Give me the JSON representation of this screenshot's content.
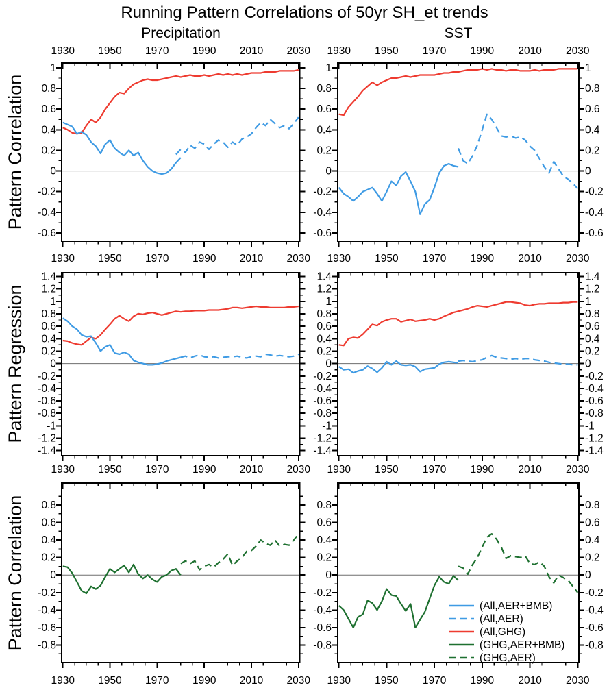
{
  "title": "Running Pattern Correlations of 50yr SH_et trends",
  "columns": [
    "Precipitation",
    "SST"
  ],
  "row_labels": [
    "Pattern Correlation",
    "Pattern Regression",
    "Pattern Correlation"
  ],
  "colors": {
    "blue": "#3F9BE4",
    "red": "#EE3B30",
    "green": "#1E7030",
    "zero_line": "#6e6e6e",
    "axis": "#000000"
  },
  "legend": [
    {
      "key": "all-aer-bmb",
      "label": "(All,AER+BMB)",
      "color": "blue",
      "dash": false
    },
    {
      "key": "all-aer",
      "label": "(All,AER)",
      "color": "blue",
      "dash": true
    },
    {
      "key": "all-ghg",
      "label": "(All,GHG)",
      "color": "red",
      "dash": false
    },
    {
      "key": "ghg-aer-bmb",
      "label": "(GHG,AER+BMB)",
      "color": "green",
      "dash": false
    },
    {
      "key": "ghg-aer",
      "label": "(GHG,AER)",
      "color": "green",
      "dash": true
    }
  ],
  "x_axis": {
    "start": 1930,
    "end": 2030,
    "majors": [
      1930,
      1950,
      1970,
      1990,
      2010,
      2030
    ],
    "minor_step": 5
  },
  "chart_data": [
    {
      "id": "precipitation-pattern-correlation",
      "type": "line",
      "row": 0,
      "col": 0,
      "xlabel": "",
      "ylabel": "Pattern Correlation",
      "ylim": [
        -0.68,
        1.046
      ],
      "ytick_min": -0.6,
      "ytick_max": 1.0,
      "ytick_step": 0.2,
      "series": [
        {
          "key": "all-ghg",
          "name": "(All,GHG)",
          "color": "red",
          "dash": false,
          "x0": 1930,
          "dx": 2,
          "values": [
            0.42,
            0.4,
            0.37,
            0.36,
            0.37,
            0.44,
            0.5,
            0.47,
            0.52,
            0.6,
            0.66,
            0.72,
            0.76,
            0.75,
            0.8,
            0.84,
            0.86,
            0.88,
            0.89,
            0.88,
            0.88,
            0.89,
            0.9,
            0.91,
            0.92,
            0.91,
            0.92,
            0.93,
            0.92,
            0.92,
            0.93,
            0.92,
            0.93,
            0.94,
            0.93,
            0.94,
            0.93,
            0.94,
            0.93,
            0.94,
            0.95,
            0.95,
            0.95,
            0.96,
            0.96,
            0.96,
            0.97,
            0.97,
            0.97,
            0.97,
            0.98
          ]
        },
        {
          "key": "all-aer-bmb",
          "name": "(All,AER+BMB)",
          "color": "blue",
          "dash": false,
          "x0": 1930,
          "dx": 2,
          "values": [
            0.47,
            0.45,
            0.43,
            0.36,
            0.38,
            0.35,
            0.28,
            0.24,
            0.17,
            0.26,
            0.3,
            0.22,
            0.18,
            0.15,
            0.2,
            0.15,
            0.18,
            0.1,
            0.04,
            0.0,
            -0.02,
            -0.03,
            -0.02,
            0.02,
            0.08,
            0.13
          ]
        },
        {
          "key": "all-aer",
          "name": "(All,AER)",
          "color": "blue",
          "dash": true,
          "x0": 1978,
          "dx": 2,
          "values": [
            0.16,
            0.21,
            0.18,
            0.25,
            0.22,
            0.28,
            0.26,
            0.21,
            0.26,
            0.3,
            0.28,
            0.23,
            0.28,
            0.25,
            0.31,
            0.33,
            0.36,
            0.42,
            0.47,
            0.44,
            0.5,
            0.46,
            0.42,
            0.44,
            0.41,
            0.46,
            0.52
          ]
        }
      ]
    },
    {
      "id": "sst-pattern-correlation",
      "type": "line",
      "row": 0,
      "col": 1,
      "xlabel": "",
      "ylabel": "Pattern Correlation",
      "ylim": [
        -0.68,
        1.046
      ],
      "ytick_min": -0.6,
      "ytick_max": 1.0,
      "ytick_step": 0.2,
      "series": [
        {
          "key": "all-ghg",
          "name": "(All,GHG)",
          "color": "red",
          "dash": false,
          "x0": 1930,
          "dx": 2,
          "values": [
            0.55,
            0.54,
            0.62,
            0.67,
            0.72,
            0.78,
            0.82,
            0.86,
            0.83,
            0.86,
            0.88,
            0.9,
            0.9,
            0.91,
            0.92,
            0.91,
            0.92,
            0.93,
            0.93,
            0.93,
            0.93,
            0.94,
            0.95,
            0.95,
            0.96,
            0.96,
            0.97,
            0.98,
            0.98,
            0.98,
            0.99,
            0.98,
            0.99,
            0.98,
            0.98,
            0.97,
            0.98,
            0.98,
            0.97,
            0.97,
            0.97,
            0.98,
            0.97,
            0.98,
            0.98,
            0.98,
            0.99,
            0.99,
            0.99,
            0.99,
            0.99
          ]
        },
        {
          "key": "all-aer-bmb",
          "name": "(All,AER+BMB)",
          "color": "blue",
          "dash": false,
          "x0": 1930,
          "dx": 2,
          "values": [
            -0.16,
            -0.22,
            -0.25,
            -0.29,
            -0.25,
            -0.2,
            -0.18,
            -0.16,
            -0.22,
            -0.29,
            -0.2,
            -0.1,
            -0.14,
            -0.05,
            -0.01,
            -0.1,
            -0.2,
            -0.42,
            -0.32,
            -0.28,
            -0.16,
            -0.02,
            0.05,
            0.07,
            0.05,
            0.04
          ]
        },
        {
          "key": "all-aer",
          "name": "(All,AER)",
          "color": "blue",
          "dash": true,
          "x0": 1980,
          "dx": 2,
          "values": [
            0.22,
            0.1,
            0.07,
            0.15,
            0.25,
            0.4,
            0.55,
            0.5,
            0.42,
            0.34,
            0.33,
            0.34,
            0.32,
            0.33,
            0.3,
            0.24,
            0.2,
            0.12,
            0.04,
            -0.02,
            0.09,
            0.02,
            -0.05,
            -0.08,
            -0.12,
            -0.17
          ]
        }
      ]
    },
    {
      "id": "precipitation-pattern-regression",
      "type": "line",
      "row": 1,
      "col": 0,
      "xlabel": "",
      "ylabel": "Pattern Regression",
      "ylim": [
        -1.48,
        1.46
      ],
      "ytick_min": -1.4,
      "ytick_max": 1.4,
      "ytick_step": 0.2,
      "series": [
        {
          "key": "all-ghg",
          "name": "(All,GHG)",
          "color": "red",
          "dash": false,
          "x0": 1930,
          "dx": 2,
          "values": [
            0.37,
            0.36,
            0.33,
            0.31,
            0.3,
            0.36,
            0.42,
            0.4,
            0.46,
            0.55,
            0.63,
            0.72,
            0.77,
            0.72,
            0.68,
            0.76,
            0.8,
            0.79,
            0.81,
            0.82,
            0.8,
            0.78,
            0.8,
            0.82,
            0.84,
            0.83,
            0.84,
            0.84,
            0.85,
            0.85,
            0.85,
            0.86,
            0.86,
            0.86,
            0.87,
            0.88,
            0.9,
            0.9,
            0.89,
            0.9,
            0.91,
            0.92,
            0.91,
            0.91,
            0.9,
            0.9,
            0.9,
            0.9,
            0.91,
            0.91,
            0.92
          ]
        },
        {
          "key": "all-aer-bmb",
          "name": "(All,AER+BMB)",
          "color": "blue",
          "dash": false,
          "x0": 1930,
          "dx": 2,
          "values": [
            0.73,
            0.68,
            0.6,
            0.55,
            0.46,
            0.43,
            0.44,
            0.33,
            0.2,
            0.27,
            0.3,
            0.17,
            0.15,
            0.18,
            0.15,
            0.05,
            0.02,
            0.0,
            -0.02,
            -0.02,
            -0.01,
            0.01,
            0.04,
            0.06,
            0.08,
            0.1
          ]
        },
        {
          "key": "all-aer",
          "name": "(All,AER)",
          "color": "blue",
          "dash": true,
          "x0": 1980,
          "dx": 2,
          "values": [
            0.1,
            0.12,
            0.09,
            0.12,
            0.14,
            0.11,
            0.1,
            0.11,
            0.09,
            0.1,
            0.11,
            0.11,
            0.12,
            0.1,
            0.09,
            0.11,
            0.12,
            0.11,
            0.15,
            0.14,
            0.12,
            0.13,
            0.12,
            0.11,
            0.12,
            0.15
          ]
        }
      ]
    },
    {
      "id": "sst-pattern-regression",
      "type": "line",
      "row": 1,
      "col": 1,
      "xlabel": "",
      "ylabel": "Pattern Regression",
      "ylim": [
        -1.48,
        1.46
      ],
      "ytick_min": -1.4,
      "ytick_max": 1.4,
      "ytick_step": 0.2,
      "series": [
        {
          "key": "all-ghg",
          "name": "(All,GHG)",
          "color": "red",
          "dash": false,
          "x0": 1930,
          "dx": 2,
          "values": [
            0.3,
            0.29,
            0.4,
            0.42,
            0.41,
            0.47,
            0.55,
            0.63,
            0.61,
            0.67,
            0.7,
            0.72,
            0.72,
            0.67,
            0.69,
            0.71,
            0.68,
            0.69,
            0.7,
            0.72,
            0.7,
            0.72,
            0.76,
            0.79,
            0.82,
            0.84,
            0.86,
            0.88,
            0.91,
            0.93,
            0.92,
            0.91,
            0.93,
            0.95,
            0.97,
            0.99,
            0.99,
            0.98,
            0.97,
            0.94,
            0.93,
            0.95,
            0.96,
            0.96,
            0.97,
            0.97,
            0.97,
            0.98,
            0.98,
            0.99,
            0.99
          ]
        },
        {
          "key": "all-aer-bmb",
          "name": "(All,AER+BMB)",
          "color": "blue",
          "dash": false,
          "x0": 1930,
          "dx": 2,
          "values": [
            -0.05,
            -0.1,
            -0.09,
            -0.15,
            -0.12,
            -0.1,
            -0.04,
            -0.08,
            -0.14,
            -0.07,
            0.03,
            -0.02,
            0.04,
            -0.02,
            -0.03,
            -0.02,
            -0.05,
            -0.13,
            -0.09,
            -0.08,
            -0.07,
            -0.01,
            0.02,
            0.03,
            0.02,
            0.01
          ]
        },
        {
          "key": "all-aer",
          "name": "(All,AER)",
          "color": "blue",
          "dash": true,
          "x0": 1980,
          "dx": 2,
          "values": [
            0.04,
            0.05,
            0.04,
            0.03,
            0.05,
            0.06,
            0.1,
            0.13,
            0.1,
            0.09,
            0.08,
            0.07,
            0.08,
            0.07,
            0.08,
            0.08,
            0.06,
            0.05,
            0.04,
            0.02,
            0.01,
            0.0,
            -0.01,
            -0.01,
            -0.02,
            -0.02
          ]
        }
      ]
    },
    {
      "id": "precipitation-ghg-pattern-correlation",
      "type": "line",
      "row": 2,
      "col": 0,
      "xlabel": "",
      "ylabel": "Pattern Correlation",
      "ylim": [
        -1.0,
        1.05
      ],
      "ytick_min": -0.8,
      "ytick_max": 0.8,
      "ytick_step": 0.2,
      "series": [
        {
          "key": "ghg-aer-bmb",
          "name": "(GHG,AER+BMB)",
          "color": "green",
          "dash": false,
          "x0": 1930,
          "dx": 2,
          "values": [
            0.1,
            0.09,
            0.02,
            -0.08,
            -0.18,
            -0.21,
            -0.13,
            -0.16,
            -0.12,
            -0.02,
            0.07,
            0.03,
            0.07,
            0.11,
            0.03,
            0.12,
            0.01,
            -0.04,
            0.0,
            -0.05,
            -0.08,
            -0.02,
            0.0,
            0.05,
            0.07,
            0.0
          ]
        },
        {
          "key": "ghg-aer",
          "name": "(GHG,AER)",
          "color": "green",
          "dash": true,
          "x0": 1980,
          "dx": 2,
          "values": [
            0.13,
            0.16,
            0.13,
            0.16,
            0.06,
            0.1,
            0.12,
            0.09,
            0.14,
            0.18,
            0.24,
            0.11,
            0.16,
            0.2,
            0.27,
            0.28,
            0.33,
            0.4,
            0.36,
            0.34,
            0.4,
            0.33,
            0.35,
            0.34,
            0.4,
            0.47
          ]
        }
      ]
    },
    {
      "id": "sst-ghg-pattern-correlation",
      "type": "line",
      "row": 2,
      "col": 1,
      "has_legend": true,
      "xlabel": "",
      "ylabel": "Pattern Correlation",
      "ylim": [
        -1.0,
        1.05
      ],
      "ytick_min": -0.8,
      "ytick_max": 0.8,
      "ytick_step": 0.2,
      "series": [
        {
          "key": "ghg-aer-bmb",
          "name": "(GHG,AER+BMB)",
          "color": "green",
          "dash": false,
          "x0": 1930,
          "dx": 2,
          "values": [
            -0.35,
            -0.4,
            -0.5,
            -0.6,
            -0.48,
            -0.45,
            -0.29,
            -0.32,
            -0.4,
            -0.3,
            -0.16,
            -0.23,
            -0.24,
            -0.33,
            -0.41,
            -0.33,
            -0.6,
            -0.51,
            -0.42,
            -0.27,
            -0.12,
            -0.02,
            -0.08,
            -0.1,
            -0.01,
            -0.06
          ]
        },
        {
          "key": "ghg-aer",
          "name": "(GHG,AER)",
          "color": "green",
          "dash": true,
          "x0": 1980,
          "dx": 2,
          "values": [
            0.1,
            0.08,
            0.01,
            0.12,
            0.2,
            0.32,
            0.43,
            0.47,
            0.41,
            0.32,
            0.19,
            0.22,
            0.21,
            0.2,
            0.22,
            0.13,
            0.12,
            0.15,
            0.1,
            -0.02,
            -0.09,
            0.0,
            -0.03,
            -0.06,
            -0.13,
            -0.2
          ]
        }
      ]
    }
  ]
}
